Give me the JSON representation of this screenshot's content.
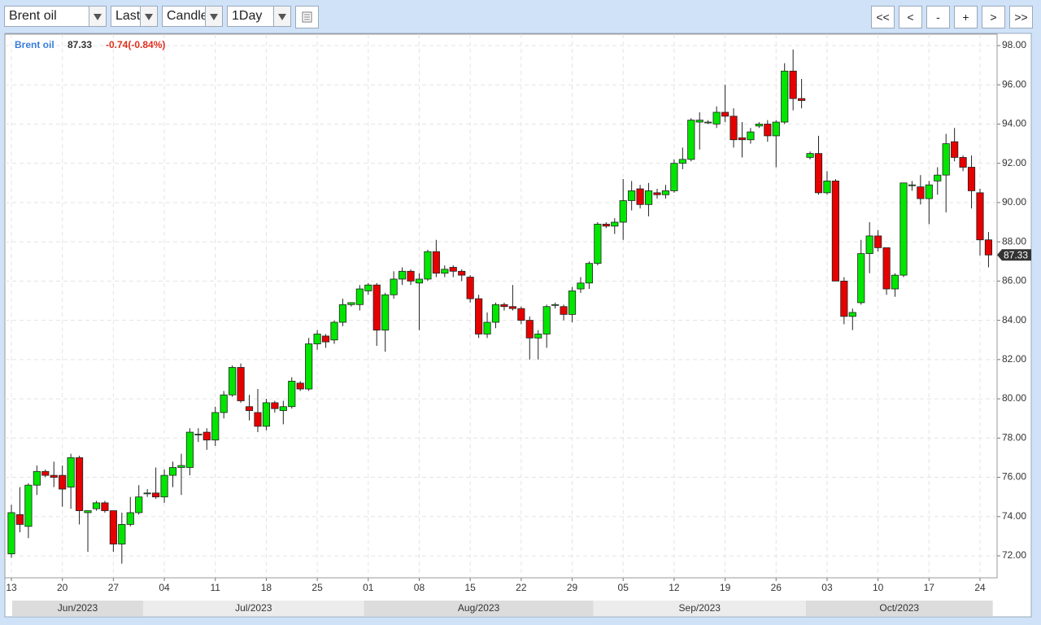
{
  "toolbar": {
    "symbol": "Brent oil",
    "field": "Last",
    "style": "Candle",
    "interval": "1Day",
    "buttons": [
      "<<",
      "<",
      "-",
      "+",
      ">",
      ">>"
    ]
  },
  "chart_data": {
    "type": "candlestick",
    "symbol": "Brent oil",
    "last": 87.33,
    "change": "-0.74(-0.84%)",
    "up_color": "#00e600",
    "down_color": "#e60000",
    "grid": true,
    "x": [
      "2023-06-13",
      "2023-06-14",
      "2023-06-15",
      "2023-06-16",
      "2023-06-18",
      "2023-06-19",
      "2023-06-20",
      "2023-06-21",
      "2023-06-22",
      "2023-06-23",
      "2023-06-25",
      "2023-06-26",
      "2023-06-27",
      "2023-06-28",
      "2023-06-29",
      "2023-06-30",
      "2023-07-02",
      "2023-07-03",
      "2023-07-04",
      "2023-07-05",
      "2023-07-06",
      "2023-07-07",
      "2023-07-09",
      "2023-07-10",
      "2023-07-11",
      "2023-07-12",
      "2023-07-13",
      "2023-07-14",
      "2023-07-16",
      "2023-07-17",
      "2023-07-18",
      "2023-07-19",
      "2023-07-20",
      "2023-07-21",
      "2023-07-23",
      "2023-07-24",
      "2023-07-25",
      "2023-07-26",
      "2023-07-27",
      "2023-07-28",
      "2023-07-30",
      "2023-07-31",
      "2023-08-01",
      "2023-08-02",
      "2023-08-03",
      "2023-08-04",
      "2023-08-06",
      "2023-08-07",
      "2023-08-08",
      "2023-08-09",
      "2023-08-10",
      "2023-08-11",
      "2023-08-13",
      "2023-08-14",
      "2023-08-15",
      "2023-08-16",
      "2023-08-17",
      "2023-08-18",
      "2023-08-20",
      "2023-08-21",
      "2023-08-22",
      "2023-08-23",
      "2023-08-24",
      "2023-08-25",
      "2023-08-27",
      "2023-08-28",
      "2023-08-29",
      "2023-08-30",
      "2023-08-31",
      "2023-09-01",
      "2023-09-03",
      "2023-09-04",
      "2023-09-05",
      "2023-09-06",
      "2023-09-07",
      "2023-09-08",
      "2023-09-10",
      "2023-09-11",
      "2023-09-12",
      "2023-09-13",
      "2023-09-14",
      "2023-09-15",
      "2023-09-17",
      "2023-09-18",
      "2023-09-19",
      "2023-09-20",
      "2023-09-21",
      "2023-09-22",
      "2023-09-24",
      "2023-09-25",
      "2023-09-26",
      "2023-09-27",
      "2023-09-28",
      "2023-09-29",
      "2023-10-01",
      "2023-10-02",
      "2023-10-03",
      "2023-10-04",
      "2023-10-05",
      "2023-10-06",
      "2023-10-08",
      "2023-10-09",
      "2023-10-10",
      "2023-10-11",
      "2023-10-12",
      "2023-10-13",
      "2023-10-15",
      "2023-10-16",
      "2023-10-17",
      "2023-10-18",
      "2023-10-19",
      "2023-10-20",
      "2023-10-22",
      "2023-10-23",
      "2023-10-24",
      "2023-10-25"
    ],
    "open": [
      72.1,
      74.1,
      73.5,
      75.6,
      76.3,
      76.1,
      76.1,
      75.5,
      77.0,
      74.2,
      74.4,
      74.7,
      74.3,
      72.6,
      73.6,
      74.2,
      75.2,
      75.2,
      75.0,
      76.1,
      76.5,
      76.5,
      78.2,
      78.3,
      77.9,
      79.3,
      80.2,
      81.6,
      79.6,
      79.3,
      78.6,
      79.8,
      79.4,
      79.6,
      80.8,
      80.5,
      82.8,
      83.2,
      83.0,
      83.9,
      84.8,
      84.8,
      85.5,
      85.8,
      83.5,
      85.3,
      86.1,
      86.5,
      85.9,
      86.1,
      87.5,
      86.4,
      86.7,
      86.5,
      86.2,
      85.1,
      83.3,
      83.9,
      84.8,
      84.7,
      84.6,
      84.0,
      83.1,
      83.3,
      84.8,
      84.7,
      84.3,
      85.6,
      85.9,
      86.9,
      88.9,
      88.8,
      89.0,
      90.1,
      90.7,
      89.9,
      90.5,
      90.4,
      90.6,
      92.0,
      92.2,
      94.1,
      94.1,
      94.0,
      94.6,
      94.4,
      93.3,
      93.2,
      93.9,
      94.0,
      93.4,
      94.1,
      96.7,
      95.3,
      92.3,
      92.5,
      90.5,
      91.1,
      86.0,
      84.2,
      84.9,
      87.4,
      88.3,
      87.7,
      85.6,
      86.3,
      90.9,
      90.8,
      90.2,
      91.1,
      91.4,
      93.1,
      92.3,
      91.8,
      90.5,
      88.1
    ],
    "high": [
      74.6,
      75.5,
      75.7,
      76.6,
      76.4,
      76.8,
      76.6,
      77.2,
      77.1,
      74.3,
      74.8,
      74.8,
      74.3,
      74.2,
      75.0,
      75.6,
      75.4,
      76.5,
      76.4,
      76.8,
      77.2,
      78.5,
      78.5,
      78.5,
      79.6,
      80.4,
      81.7,
      81.8,
      80.2,
      80.5,
      80.0,
      79.9,
      79.9,
      81.1,
      80.9,
      83.1,
      83.5,
      83.3,
      84.0,
      85.1,
      84.9,
      85.8,
      85.9,
      85.9,
      85.4,
      86.5,
      86.7,
      86.6,
      86.4,
      87.6,
      88.1,
      86.8,
      86.8,
      86.6,
      86.3,
      85.3,
      84.4,
      84.9,
      84.9,
      85.8,
      84.7,
      84.2,
      83.5,
      84.8,
      84.9,
      84.8,
      85.7,
      86.2,
      87.0,
      89.0,
      89.0,
      89.2,
      91.2,
      91.1,
      90.9,
      91.0,
      90.7,
      90.9,
      92.2,
      92.8,
      94.3,
      94.6,
      94.2,
      94.9,
      96.0,
      94.8,
      94.1,
      93.8,
      94.1,
      94.2,
      94.2,
      97.1,
      97.8,
      96.3,
      92.6,
      93.4,
      91.6,
      91.2,
      86.2,
      84.6,
      88.1,
      89.0,
      88.6,
      87.7,
      86.4,
      91.0,
      91.1,
      91.4,
      91.1,
      91.8,
      93.5,
      93.8,
      92.4,
      92.4,
      90.7,
      88.5
    ],
    "low": [
      71.9,
      73.2,
      72.9,
      75.1,
      76.0,
      75.5,
      74.5,
      74.4,
      73.6,
      72.2,
      74.3,
      74.2,
      72.2,
      71.6,
      73.5,
      74.1,
      75.0,
      74.9,
      74.7,
      75.5,
      75.1,
      76.1,
      77.8,
      77.4,
      77.6,
      79.0,
      80.1,
      79.8,
      78.9,
      78.3,
      78.4,
      79.3,
      78.7,
      79.5,
      80.4,
      80.4,
      82.5,
      82.6,
      82.8,
      83.7,
      84.7,
      84.5,
      85.3,
      82.7,
      82.4,
      85.1,
      85.8,
      85.8,
      83.5,
      86.0,
      86.2,
      86.2,
      86.2,
      86.0,
      84.9,
      83.1,
      83.1,
      83.6,
      84.5,
      84.5,
      83.8,
      82.0,
      82.0,
      82.6,
      84.6,
      84.0,
      83.9,
      85.4,
      85.6,
      86.8,
      88.7,
      88.4,
      88.1,
      89.6,
      89.7,
      89.3,
      90.2,
      90.2,
      90.5,
      91.7,
      92.1,
      92.7,
      94.0,
      93.8,
      94.1,
      92.8,
      92.3,
      93.0,
      93.8,
      93.1,
      91.8,
      94.0,
      94.7,
      94.8,
      92.2,
      90.4,
      90.4,
      86.0,
      83.8,
      83.5,
      84.8,
      86.4,
      87.5,
      85.3,
      85.2,
      86.2,
      90.6,
      89.9,
      88.9,
      90.4,
      89.5,
      92.1,
      91.6,
      89.7,
      87.3,
      86.7
    ],
    "close": [
      74.2,
      73.6,
      75.6,
      76.3,
      76.1,
      76.0,
      75.4,
      77.0,
      74.3,
      74.3,
      74.7,
      74.3,
      72.6,
      73.6,
      74.2,
      75.0,
      75.2,
      75.0,
      76.1,
      76.5,
      76.6,
      78.3,
      78.2,
      77.9,
      79.3,
      80.2,
      81.6,
      79.9,
      79.4,
      78.6,
      79.8,
      79.5,
      79.6,
      80.9,
      80.5,
      82.8,
      83.3,
      82.9,
      83.9,
      84.8,
      84.9,
      85.6,
      85.8,
      83.5,
      85.3,
      86.1,
      86.5,
      86.0,
      86.1,
      87.5,
      86.4,
      86.6,
      86.5,
      86.3,
      85.1,
      83.3,
      83.9,
      84.8,
      84.7,
      84.6,
      84.0,
      83.1,
      83.3,
      84.7,
      84.8,
      84.3,
      85.5,
      85.9,
      86.9,
      88.9,
      88.8,
      89.0,
      90.1,
      90.6,
      89.9,
      90.6,
      90.4,
      90.6,
      92.0,
      92.2,
      94.2,
      94.2,
      94.1,
      94.6,
      94.4,
      93.2,
      93.2,
      93.6,
      94.0,
      93.4,
      94.1,
      96.7,
      95.3,
      95.2,
      92.5,
      90.5,
      91.1,
      86.0,
      84.2,
      84.4,
      87.4,
      88.3,
      87.7,
      85.6,
      86.3,
      91.0,
      90.9,
      90.2,
      90.9,
      91.4,
      93.0,
      92.3,
      91.8,
      90.6,
      88.1,
      87.33
    ],
    "ylim": [
      70.88,
      98.58
    ],
    "yticks": [
      {
        "value": 72,
        "label": "72.00"
      },
      {
        "value": 74,
        "label": "74.00"
      },
      {
        "value": 76,
        "label": "76.00"
      },
      {
        "value": 78,
        "label": "78.00"
      },
      {
        "value": 80,
        "label": "80.00"
      },
      {
        "value": 82,
        "label": "82.00"
      },
      {
        "value": 84,
        "label": "84.00"
      },
      {
        "value": 86,
        "label": "86.00"
      },
      {
        "value": 88,
        "label": "88.00"
      },
      {
        "value": 90,
        "label": "90.00"
      },
      {
        "value": 92,
        "label": "92.00"
      },
      {
        "value": 94,
        "label": "94.00"
      },
      {
        "value": 96,
        "label": "96.00"
      },
      {
        "value": 98,
        "label": "98.00"
      }
    ],
    "xticks": [
      {
        "value": "2023-06-13",
        "label": "13"
      },
      {
        "value": "2023-06-20",
        "label": "20"
      },
      {
        "value": "2023-06-27",
        "label": "27"
      },
      {
        "value": "2023-07-04",
        "label": "04"
      },
      {
        "value": "2023-07-11",
        "label": "11"
      },
      {
        "value": "2023-07-18",
        "label": "18"
      },
      {
        "value": "2023-07-25",
        "label": "25"
      },
      {
        "value": "2023-08-01",
        "label": "01"
      },
      {
        "value": "2023-08-08",
        "label": "08"
      },
      {
        "value": "2023-08-15",
        "label": "15"
      },
      {
        "value": "2023-08-22",
        "label": "22"
      },
      {
        "value": "2023-08-29",
        "label": "29"
      },
      {
        "value": "2023-09-05",
        "label": "05"
      },
      {
        "value": "2023-09-12",
        "label": "12"
      },
      {
        "value": "2023-09-19",
        "label": "19"
      },
      {
        "value": "2023-09-26",
        "label": "26"
      },
      {
        "value": "2023-10-03",
        "label": "03"
      },
      {
        "value": "2023-10-10",
        "label": "10"
      },
      {
        "value": "2023-10-17",
        "label": "17"
      },
      {
        "value": "2023-10-24",
        "label": "24"
      }
    ],
    "months": [
      {
        "value": "2023-06",
        "label": "Jun/2023"
      },
      {
        "value": "2023-07",
        "label": "Jul/2023"
      },
      {
        "value": "2023-08",
        "label": "Aug/2023"
      },
      {
        "value": "2023-09",
        "label": "Sep/2023"
      },
      {
        "value": "2023-10",
        "label": "Oct/2023"
      }
    ]
  }
}
